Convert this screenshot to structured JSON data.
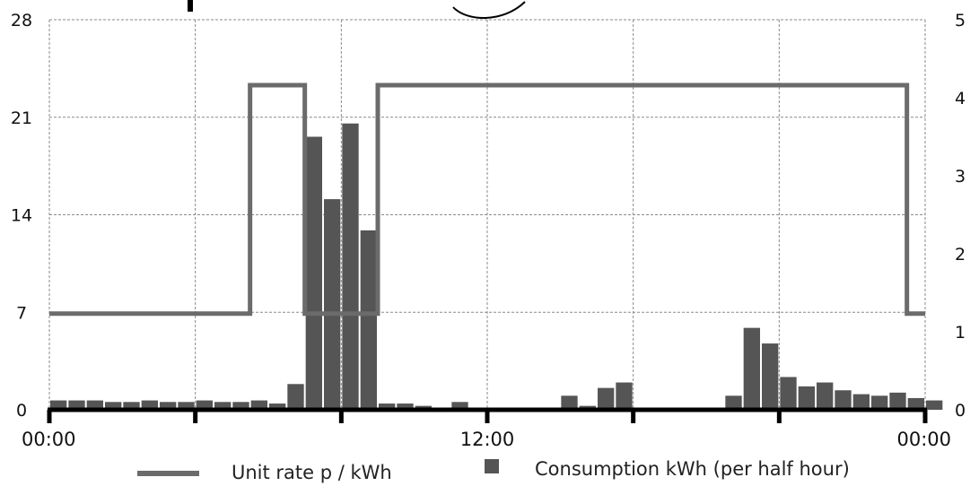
{
  "chart_data": {
    "type": "bar",
    "title": "",
    "x": {
      "unit": "hours",
      "range": [
        0,
        24
      ],
      "tick_values": [
        0,
        12,
        24
      ],
      "tick_labels": [
        "00:00",
        "12:00",
        "00:00"
      ],
      "gridlines_every_hours": 4
    },
    "y_left": {
      "range": [
        0,
        28
      ],
      "ticks": [
        0,
        7,
        14,
        21,
        28
      ],
      "tick_labels": [
        "0",
        "7",
        "14",
        "21",
        "28"
      ]
    },
    "y_right": {
      "range": [
        0,
        5
      ],
      "ticks": [
        0,
        1,
        2,
        3,
        4,
        5
      ],
      "tick_labels": [
        "0",
        "1",
        "2",
        "3",
        "4",
        "5"
      ]
    },
    "grid": true,
    "legend": {
      "position": "bottom"
    },
    "series": [
      {
        "name": "Unit rate p / kWh",
        "type": "line",
        "axis": "left",
        "color": "#6b6b6b",
        "points": [
          {
            "x": 0.0,
            "y": 6.9
          },
          {
            "x": 5.5,
            "y": 6.9
          },
          {
            "x": 5.5,
            "y": 23.3
          },
          {
            "x": 7.0,
            "y": 23.3
          },
          {
            "x": 7.0,
            "y": 6.9
          },
          {
            "x": 9.0,
            "y": 6.9
          },
          {
            "x": 9.0,
            "y": 23.3
          },
          {
            "x": 23.5,
            "y": 23.3
          },
          {
            "x": 23.5,
            "y": 6.9
          },
          {
            "x": 24.0,
            "y": 6.9
          }
        ]
      },
      {
        "name": "Consumption kWh (per half hour)",
        "type": "bar",
        "axis": "right",
        "color": "#555555",
        "bar_width_hours": 0.5,
        "values": [
          0.12,
          0.12,
          0.12,
          0.1,
          0.1,
          0.12,
          0.1,
          0.1,
          0.12,
          0.1,
          0.1,
          0.12,
          0.08,
          0.33,
          3.5,
          2.7,
          3.67,
          2.3,
          0.08,
          0.08,
          0.05,
          0.02,
          0.1,
          0.02,
          0.0,
          0.0,
          0.0,
          0.0,
          0.18,
          0.05,
          0.28,
          0.35,
          0.0,
          0.0,
          0.0,
          0.0,
          0.0,
          0.18,
          1.05,
          0.85,
          0.42,
          0.3,
          0.35,
          0.25,
          0.2,
          0.18,
          0.22,
          0.15,
          0.12
        ]
      }
    ]
  }
}
